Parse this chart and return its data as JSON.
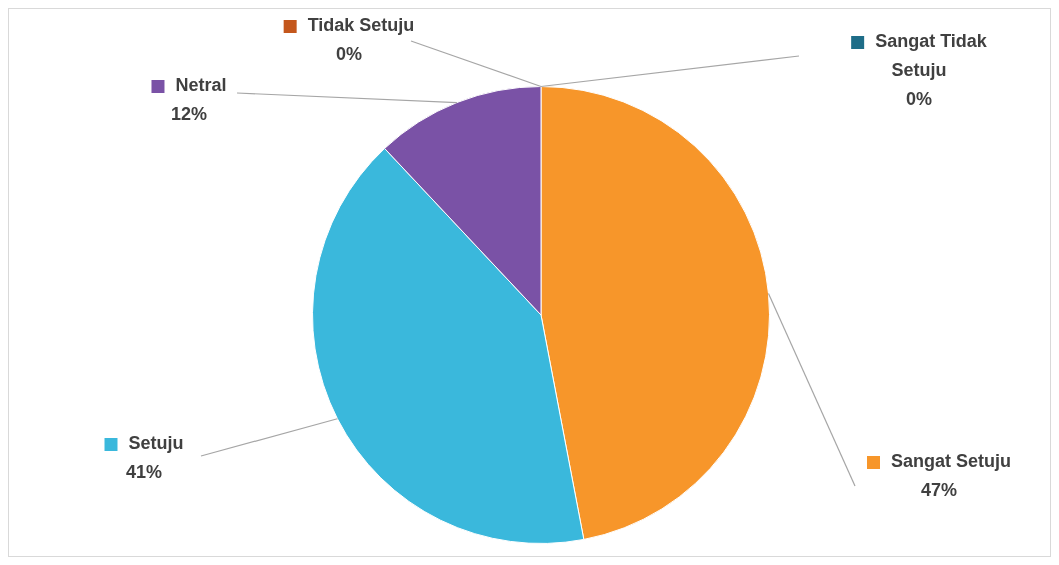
{
  "chart_data": {
    "type": "pie",
    "categories": [
      "Sangat Setuju",
      "Setuju",
      "Netral",
      "Tidak Setuju",
      "Sangat Tidak Setuju"
    ],
    "values": [
      47,
      41,
      12,
      0,
      0
    ],
    "value_labels": [
      "47%",
      "41%",
      "12%",
      "0%",
      "0%"
    ],
    "colors": [
      "#f7962a",
      "#3ab8dc",
      "#7a52a6",
      "#c4571c",
      "#1e6d88"
    ],
    "legend": "top"
  }
}
